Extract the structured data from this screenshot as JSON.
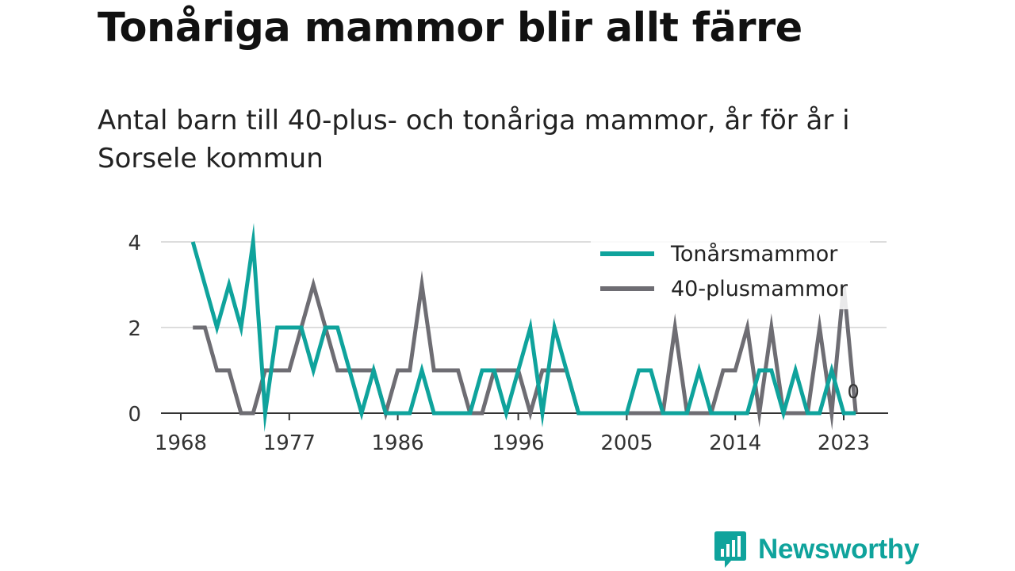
{
  "title": "Tonåriga mammor blir allt färre",
  "subtitle": "Antal barn till 40-plus- och tonåriga mammor, år för år i Sorsele kommun",
  "brand": "Newsworthy",
  "chart_data": {
    "type": "line",
    "x": [
      1969,
      1970,
      1971,
      1972,
      1973,
      1974,
      1975,
      1976,
      1977,
      1978,
      1979,
      1980,
      1981,
      1982,
      1983,
      1984,
      1985,
      1986,
      1987,
      1988,
      1989,
      1990,
      1991,
      1992,
      1993,
      1994,
      1995,
      1996,
      1997,
      1998,
      1999,
      2000,
      2001,
      2002,
      2003,
      2004,
      2005,
      2006,
      2007,
      2008,
      2009,
      2010,
      2011,
      2012,
      2013,
      2014,
      2015,
      2016,
      2017,
      2018,
      2019,
      2020,
      2021,
      2022,
      2023,
      2024
    ],
    "series": [
      {
        "name": "Tonårsmammor",
        "color": "#0fa39c",
        "values": [
          4,
          3,
          2,
          3,
          2,
          4,
          0,
          2,
          2,
          2,
          1,
          2,
          2,
          1,
          0,
          1,
          0,
          0,
          0,
          1,
          0,
          0,
          0,
          0,
          1,
          1,
          0,
          1,
          2,
          0,
          2,
          1,
          0,
          0,
          0,
          0,
          0,
          1,
          1,
          0,
          0,
          0,
          1,
          0,
          0,
          0,
          0,
          1,
          1,
          0,
          1,
          0,
          0,
          1,
          0,
          0
        ]
      },
      {
        "name": "40-plusmammor",
        "color": "#6e6d73",
        "values": [
          2,
          2,
          1,
          1,
          0,
          0,
          1,
          1,
          1,
          2,
          3,
          2,
          1,
          1,
          1,
          1,
          0,
          1,
          1,
          3,
          1,
          1,
          1,
          0,
          0,
          1,
          1,
          1,
          0,
          1,
          1,
          1,
          0,
          0,
          0,
          0,
          0,
          0,
          0,
          0,
          2,
          0,
          0,
          0,
          1,
          1,
          2,
          0,
          2,
          0,
          0,
          0,
          2,
          0,
          3,
          0
        ]
      }
    ],
    "xticks": [
      "1968",
      "1977",
      "1986",
      "1996",
      "2005",
      "2014",
      "2023"
    ],
    "yticks": [
      "0",
      "2",
      "4"
    ],
    "ylim": [
      0,
      4
    ],
    "end_label": "0",
    "grid": true,
    "legend": "top-right"
  }
}
